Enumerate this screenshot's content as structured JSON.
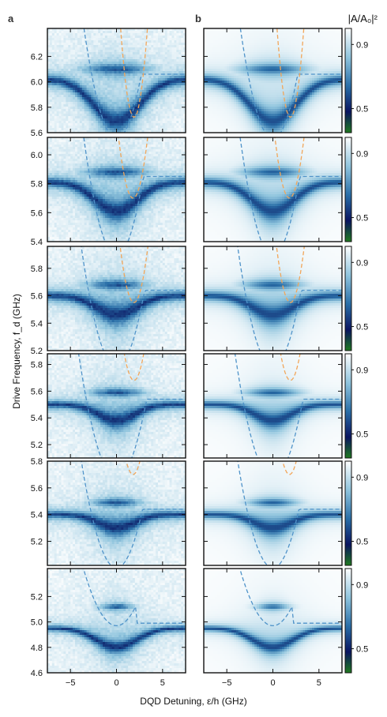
{
  "chart_data": {
    "type": "heatmap",
    "panel_labels": [
      "a",
      "b"
    ],
    "colorbar_label": "|A/A₀|²",
    "colorbar_ticks": [
      "0.9",
      "0.5"
    ],
    "colorbar_tick_values": [
      0.9,
      0.5
    ],
    "colorbar_colors": [
      "#1f7a1f",
      "#0a1560",
      "#2a6fa8",
      "#8fc4dd",
      "#ffffff"
    ],
    "ylabel": "Drive Frequency, f_d (GHz)",
    "xlabel": "DQD Detuning, ε/h (GHz)",
    "xlim": [
      -7.5,
      7.5
    ],
    "xticks": [
      -5,
      0,
      5
    ],
    "xtick_labels": [
      "−5",
      "0",
      "5"
    ],
    "left_column": "measured",
    "right_column": "simulated",
    "rows": [
      {
        "ylim": [
          5.6,
          6.42
        ],
        "yticks": [
          5.6,
          5.8,
          6.0,
          6.2
        ],
        "ytick_labels": [
          "5.6",
          "5.8",
          "6.0",
          "6.2"
        ],
        "resonator_f": 6.02,
        "resonator_width": 0.035,
        "dip_depth": 0.33,
        "dip_width": 2.5,
        "upper_f": 6.1,
        "upper_width": 2.6,
        "blue_min": 5.55,
        "blue_curv": 0.07,
        "orange_center": 1.9,
        "orange_min": 5.72,
        "orange_curv": 0.55
      },
      {
        "ylim": [
          5.4,
          6.12
        ],
        "yticks": [
          5.4,
          5.6,
          5.8,
          6.0
        ],
        "ytick_labels": [
          "5.4",
          "5.6",
          "5.8",
          "6.0"
        ],
        "resonator_f": 5.81,
        "resonator_width": 0.03,
        "dip_depth": 0.2,
        "dip_width": 2.3,
        "upper_f": 5.88,
        "upper_width": 2.5,
        "blue_min": 5.3,
        "blue_curv": 0.065,
        "orange_center": 1.8,
        "orange_min": 5.7,
        "orange_curv": 0.28
      },
      {
        "ylim": [
          5.2,
          5.96
        ],
        "yticks": [
          5.2,
          5.4,
          5.6,
          5.8
        ],
        "ytick_labels": [
          "5.2",
          "5.4",
          "5.6",
          "5.8"
        ],
        "resonator_f": 5.6,
        "resonator_width": 0.03,
        "dip_depth": 0.14,
        "dip_width": 2.2,
        "upper_f": 5.68,
        "upper_width": 2.3,
        "blue_min": 5.08,
        "blue_curv": 0.06,
        "orange_center": 1.9,
        "orange_min": 5.55,
        "orange_curv": 0.3
      },
      {
        "ylim": [
          5.1,
          5.88
        ],
        "yticks": [
          5.2,
          5.4,
          5.6,
          5.8
        ],
        "ytick_labels": [
          "5.2",
          "5.4",
          "5.6",
          "5.8"
        ],
        "resonator_f": 5.5,
        "resonator_width": 0.025,
        "dip_depth": 0.12,
        "dip_width": 2.0,
        "upper_f": 5.59,
        "upper_width": 2.1,
        "blue_min": 4.95,
        "blue_curv": 0.055,
        "orange_center": 1.9,
        "orange_min": 5.68,
        "orange_curv": 0.3
      },
      {
        "ylim": [
          5.02,
          5.8
        ],
        "yticks": [
          5.2,
          5.4,
          5.6,
          5.8
        ],
        "ytick_labels": [
          "5.2",
          "5.4",
          "5.6",
          "5.8"
        ],
        "resonator_f": 5.4,
        "resonator_width": 0.025,
        "dip_depth": 0.1,
        "dip_width": 2.0,
        "upper_f": 5.49,
        "upper_width": 1.9,
        "blue_min": 5.0,
        "blue_curv": 0.055,
        "orange_center": 1.8,
        "orange_min": 5.7,
        "orange_curv": 0.3
      },
      {
        "ylim": [
          4.6,
          5.42
        ],
        "yticks": [
          4.6,
          4.8,
          5.0,
          5.2
        ],
        "ytick_labels": [
          "4.6",
          "4.8",
          "5.0",
          "5.2"
        ],
        "resonator_f": 4.95,
        "resonator_width": 0.02,
        "dip_depth": 0.15,
        "dip_width": 2.2,
        "upper_f": 5.12,
        "upper_width": 1.2,
        "blue_min": 4.97,
        "blue_curv": 0.035,
        "orange_center": null,
        "orange_min": null,
        "orange_curv": null
      }
    ]
  }
}
